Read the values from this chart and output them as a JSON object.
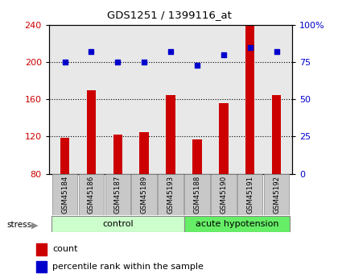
{
  "title": "GDS1251 / 1399116_at",
  "samples": [
    "GSM45184",
    "GSM45186",
    "GSM45187",
    "GSM45189",
    "GSM45193",
    "GSM45188",
    "GSM45190",
    "GSM45191",
    "GSM45192"
  ],
  "counts": [
    119,
    170,
    122,
    125,
    165,
    117,
    156,
    240,
    165
  ],
  "percentile_ranks": [
    75,
    82,
    75,
    75,
    82,
    73,
    80,
    85,
    82
  ],
  "groups": [
    "control",
    "control",
    "control",
    "control",
    "control",
    "acute hypotension",
    "acute hypotension",
    "acute hypotension",
    "acute hypotension"
  ],
  "group_colors": {
    "control": "#ccffcc",
    "acute hypotension": "#66ee66"
  },
  "bar_color": "#cc0000",
  "dot_color": "#0000cc",
  "ylim_left": [
    80,
    240
  ],
  "ylim_right": [
    0,
    100
  ],
  "yticks_left": [
    80,
    120,
    160,
    200,
    240
  ],
  "yticks_right": [
    0,
    25,
    50,
    75,
    100
  ],
  "ytick_labels_right": [
    "0",
    "25",
    "50",
    "75",
    "100%"
  ],
  "hlines": [
    120,
    160,
    200
  ],
  "plot_bg_color": "#e8e8e8",
  "sample_box_color": "#c8c8c8",
  "bar_bottom": 80
}
